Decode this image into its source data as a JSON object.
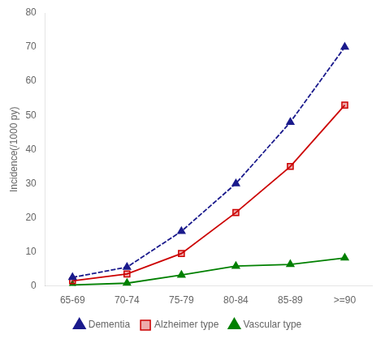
{
  "chart_data": {
    "type": "line",
    "categories": [
      "65-69",
      "70-74",
      "75-79",
      "80-84",
      "85-89",
      ">=90"
    ],
    "series": [
      {
        "name": "Dementia",
        "color": "#1a1a8c",
        "values": [
          2.5,
          5.5,
          16,
          30,
          48,
          70
        ],
        "marker": "triangle",
        "line_style": "dashed"
      },
      {
        "name": "Alzheimer type",
        "color": "#cc0000",
        "values": [
          1.5,
          3.5,
          9.5,
          21.5,
          35,
          53
        ],
        "marker": "square",
        "line_style": "solid"
      },
      {
        "name": "Vascular type",
        "color": "#008000",
        "values": [
          0.3,
          0.8,
          3.2,
          5.8,
          6.3,
          8.2
        ],
        "marker": "triangle",
        "line_style": "solid"
      }
    ],
    "ylabel": "Incidence(/1000 py)",
    "ylim": [
      0,
      80
    ],
    "yticks": [
      0,
      10,
      20,
      30,
      40,
      50,
      60,
      70,
      80
    ],
    "grid": false,
    "legend": "bottom"
  }
}
